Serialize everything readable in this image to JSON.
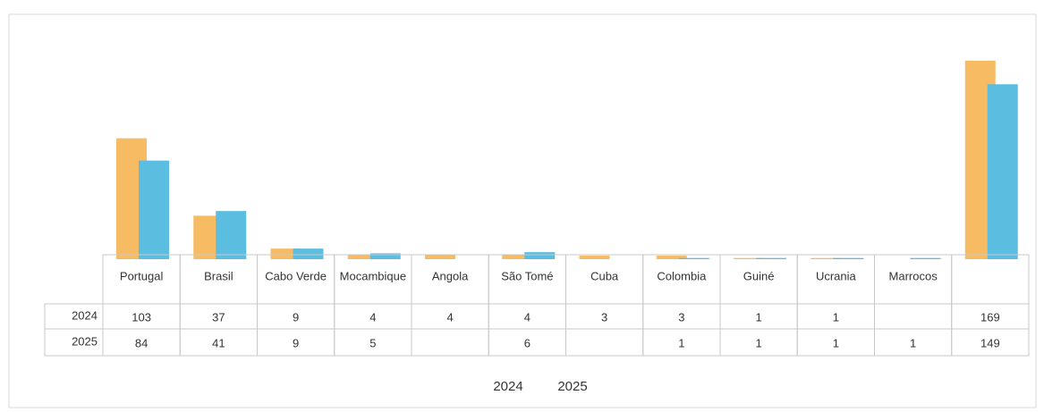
{
  "chart_data": {
    "type": "bar",
    "categories": [
      "Portugal",
      "Brasil",
      "Cabo Verde",
      "Mocambique",
      "Angola",
      "São Tomé",
      "Cuba",
      "Colombia",
      "Guiné",
      "Ucrania",
      "Marrocos",
      null
    ],
    "series": [
      {
        "name": "2024",
        "color": "#f6bb63",
        "values": [
          103,
          37,
          9,
          4,
          4,
          4,
          3,
          3,
          1,
          1,
          null,
          169
        ]
      },
      {
        "name": "2025",
        "color": "#5bbde0",
        "values": [
          84,
          41,
          9,
          5,
          null,
          6,
          null,
          1,
          1,
          1,
          1,
          149
        ]
      }
    ]
  }
}
